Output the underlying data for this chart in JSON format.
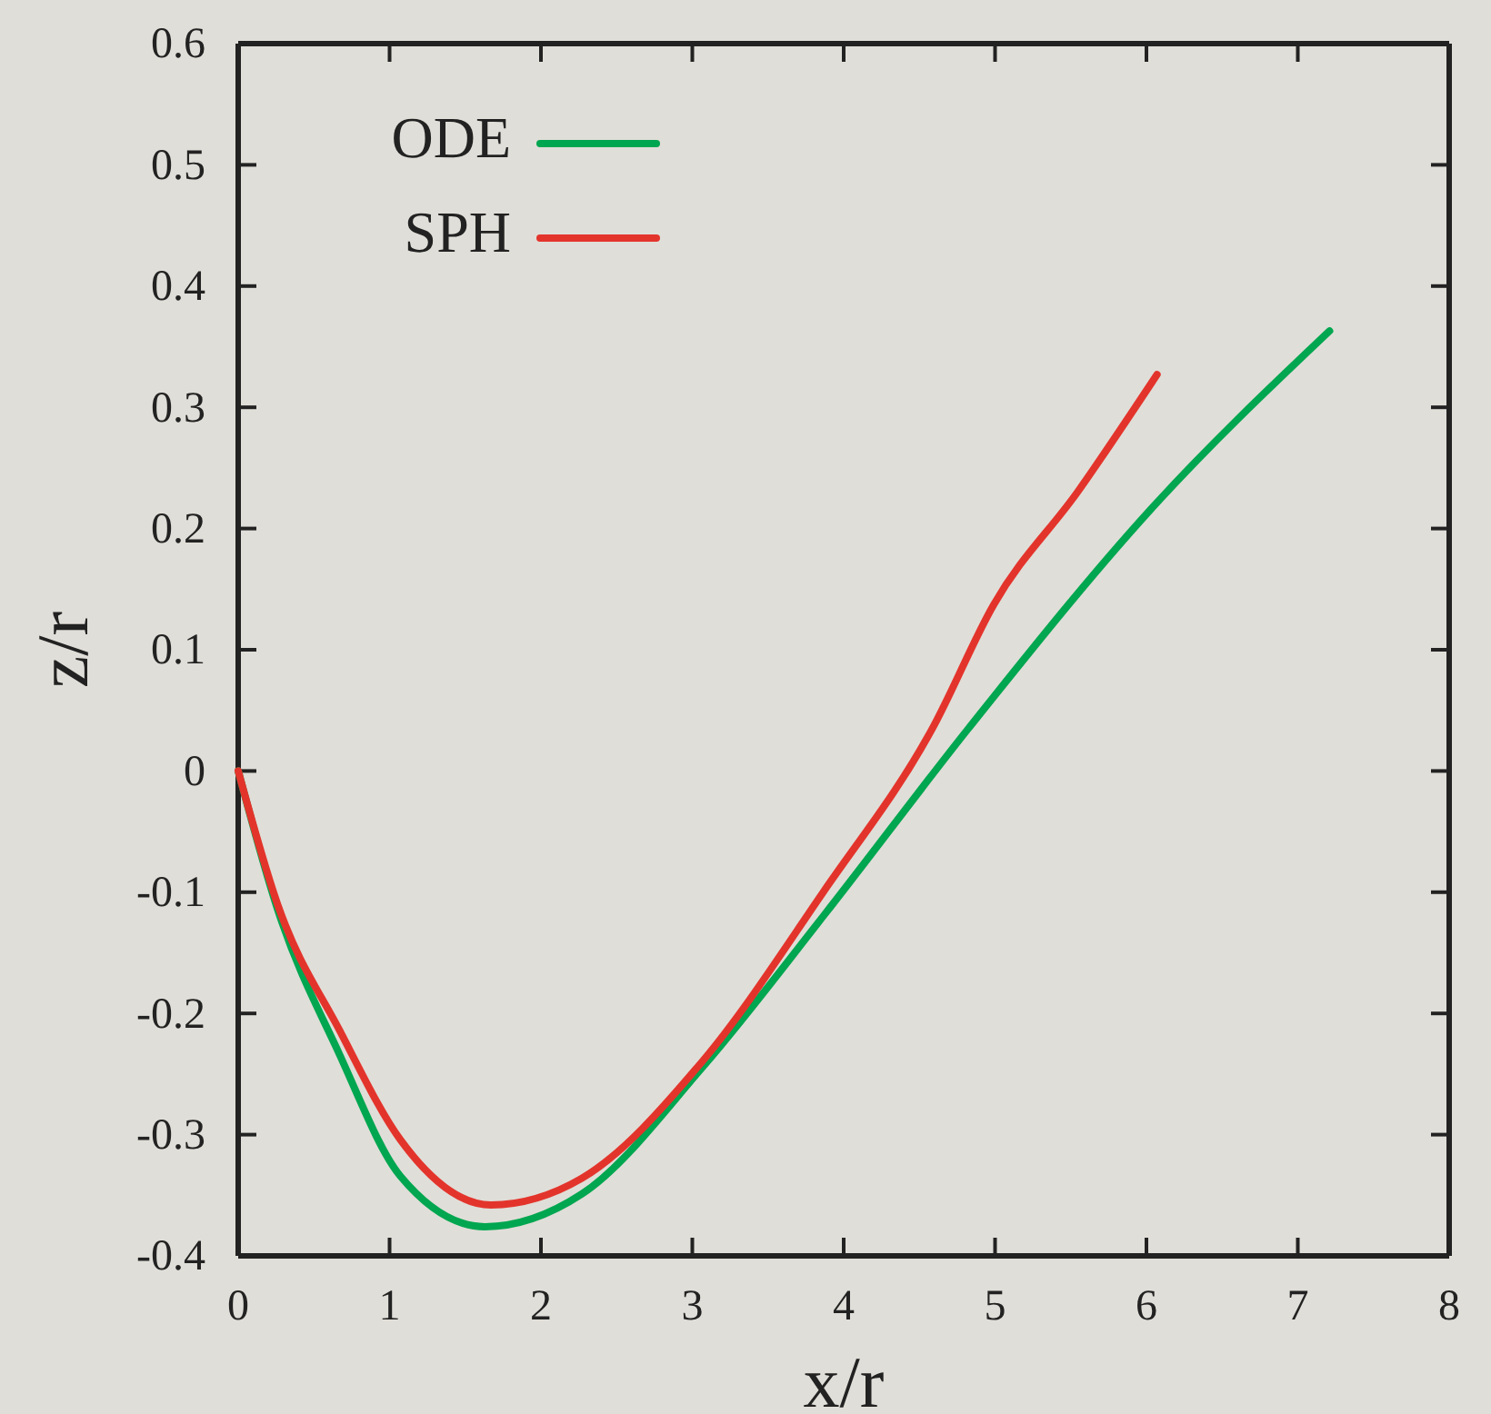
{
  "chart_data": {
    "type": "line",
    "xlabel": "x/r",
    "ylabel": "z/r",
    "xlim": [
      0,
      8
    ],
    "ylim": [
      -0.4,
      0.6
    ],
    "xticks": [
      0,
      1,
      2,
      3,
      4,
      5,
      6,
      7,
      8
    ],
    "yticks": [
      -0.4,
      -0.3,
      -0.2,
      -0.1,
      0,
      0.1,
      0.2,
      0.3,
      0.4,
      0.5,
      0.6
    ],
    "legend": "top left",
    "grid": false,
    "marker": "none",
    "line_style": "solid",
    "series": [
      {
        "name": "ODE",
        "color": "#00a650",
        "x": [
          0,
          0.26,
          0.67,
          1.07,
          1.63,
          2.27,
          3.07,
          3.87,
          4.83,
          6.03,
          7.21
        ],
        "values": [
          0,
          -0.114,
          -0.234,
          -0.334,
          -0.376,
          -0.349,
          -0.244,
          -0.119,
          0.036,
          0.216,
          0.363
        ]
      },
      {
        "name": "SPH",
        "color": "#e3342c",
        "x": [
          0,
          0.26,
          0.67,
          1.07,
          1.67,
          2.27,
          3.07,
          3.87,
          4.59,
          4.99,
          5.55,
          6.07
        ],
        "values": [
          0,
          -0.11,
          -0.214,
          -0.304,
          -0.358,
          -0.336,
          -0.239,
          -0.099,
          0.036,
          0.137,
          0.231,
          0.327
        ]
      }
    ]
  }
}
